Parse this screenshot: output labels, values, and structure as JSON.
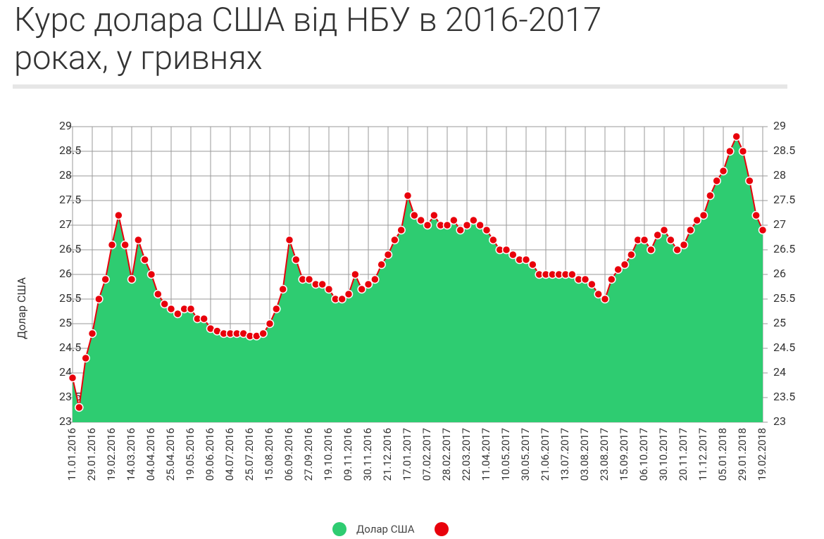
{
  "chart_data": {
    "type": "area",
    "title": "Курс долара США від НБУ в 2016-2017 роках, у гривнях",
    "y_label": "Долар США",
    "categories": [
      "11.01.2016",
      null,
      null,
      "29.01.2016",
      null,
      null,
      "19.02.2016",
      null,
      null,
      "14.03.2016",
      null,
      null,
      "04.04.2016",
      null,
      null,
      "25.04.2016",
      null,
      null,
      "19.05.2016",
      null,
      null,
      "09.06.2016",
      null,
      null,
      "04.07.2016",
      null,
      null,
      "25.07.2016",
      null,
      null,
      "15.08.2016",
      null,
      null,
      "06.09.2016",
      null,
      null,
      "27.09.2016",
      null,
      null,
      "19.10.2016",
      null,
      null,
      "09.11.2016",
      null,
      null,
      "30.11.2016",
      null,
      null,
      "21.12.2016",
      null,
      null,
      "17.01.2017",
      null,
      null,
      "07.02.2017",
      null,
      null,
      "28.02.2017",
      null,
      null,
      "22.03.2017",
      null,
      null,
      "11.04.2017",
      null,
      null,
      "10.05.2017",
      null,
      null,
      "30.05.2017",
      null,
      null,
      "21.06.2017",
      null,
      null,
      "13.07.2017",
      null,
      null,
      "03.08.2017",
      null,
      null,
      "23.08.2017",
      null,
      null,
      "15.09.2017",
      null,
      null,
      "06.10.2017",
      null,
      null,
      "30.10.2017",
      null,
      null,
      "20.11.2017",
      null,
      null,
      "11.12.2017",
      null,
      null,
      "05.01.2018",
      null,
      null,
      "29.01.2018",
      null,
      null,
      "19.02.2018"
    ],
    "series": [
      {
        "name": "Долар США",
        "color": "#2ecc71",
        "marker_color": "#e8000b",
        "values": [
          23.9,
          23.3,
          24.3,
          24.8,
          25.5,
          25.9,
          26.6,
          27.2,
          26.6,
          25.9,
          26.7,
          26.3,
          26.0,
          25.6,
          25.4,
          25.3,
          25.2,
          25.3,
          25.3,
          25.1,
          25.1,
          24.9,
          24.85,
          24.8,
          24.8,
          24.8,
          24.8,
          24.75,
          24.75,
          24.8,
          25.0,
          25.3,
          25.7,
          26.7,
          26.3,
          25.9,
          25.9,
          25.8,
          25.8,
          25.7,
          25.5,
          25.5,
          25.6,
          26.0,
          25.7,
          25.8,
          25.9,
          26.2,
          26.4,
          26.7,
          26.9,
          27.6,
          27.2,
          27.1,
          27.0,
          27.2,
          27.0,
          27.0,
          27.1,
          26.9,
          27.0,
          27.1,
          27.0,
          26.9,
          26.7,
          26.5,
          26.5,
          26.4,
          26.3,
          26.3,
          26.2,
          26.0,
          26.0,
          26.0,
          26.0,
          26.0,
          26.0,
          25.9,
          25.9,
          25.8,
          25.6,
          25.5,
          25.9,
          26.1,
          26.2,
          26.4,
          26.7,
          26.7,
          26.5,
          26.8,
          26.9,
          26.7,
          26.5,
          26.6,
          26.9,
          27.1,
          27.2,
          27.6,
          27.9,
          28.1,
          28.5,
          28.8,
          28.5,
          27.9,
          27.2,
          26.9
        ]
      }
    ],
    "ylim": [
      23,
      29
    ],
    "yticks": [
      23,
      23.5,
      24,
      24.5,
      25,
      25.5,
      26,
      26.5,
      27,
      27.5,
      28,
      28.5,
      29
    ],
    "grid": true
  }
}
